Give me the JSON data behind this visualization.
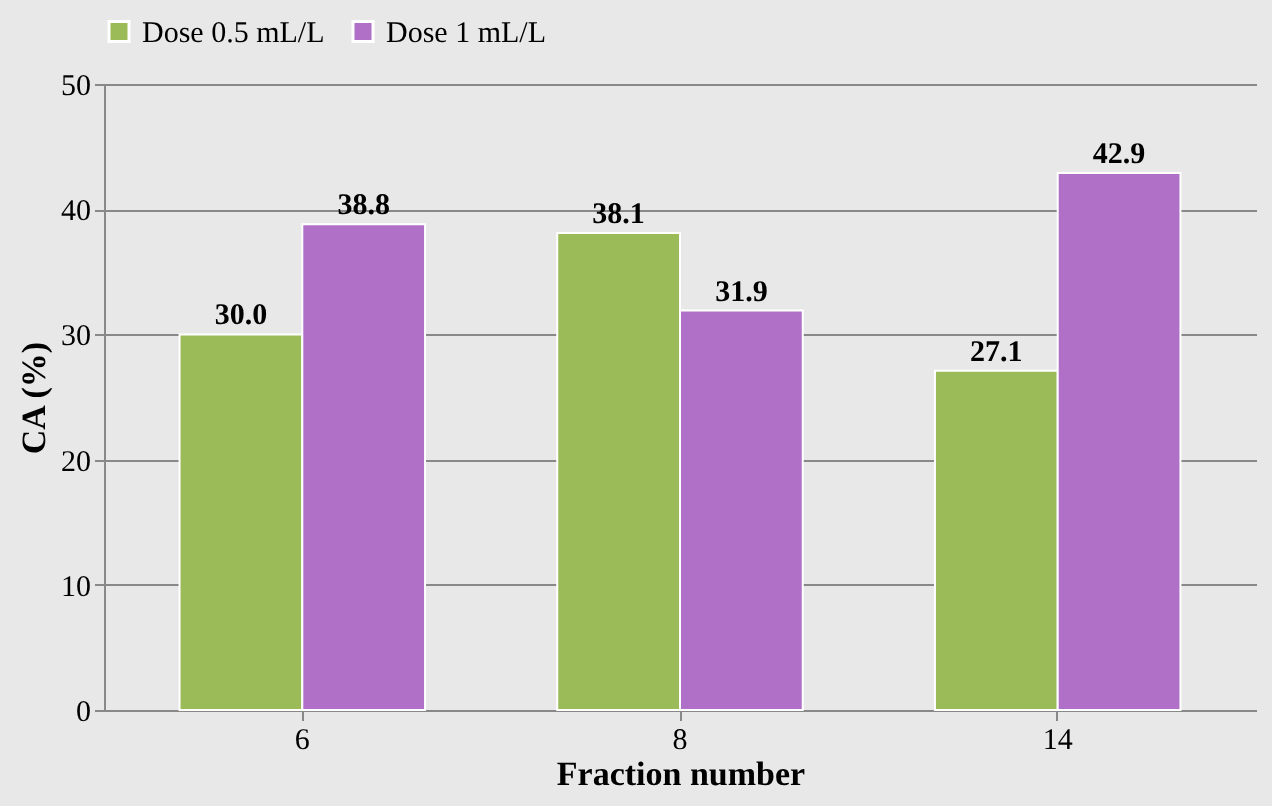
{
  "chart_data": {
    "type": "bar",
    "xlabel": "Fraction number",
    "ylabel": "CA (%)",
    "categories": [
      "6",
      "8",
      "14"
    ],
    "series": [
      {
        "name": "Dose 0.5 mL/L",
        "color": "#9bbb59",
        "values": [
          30.0,
          38.1,
          27.1
        ],
        "value_labels": [
          "30.0",
          "38.1",
          "27.1"
        ]
      },
      {
        "name": "Dose 1 mL/L",
        "color": "#b070c8",
        "values": [
          38.8,
          31.9,
          42.9
        ],
        "value_labels": [
          "38.8",
          "31.9",
          "42.9"
        ]
      }
    ],
    "ylim": [
      0,
      50
    ],
    "yticks": [
      0,
      10,
      20,
      30,
      40,
      50
    ],
    "grid": "y",
    "legend": "top"
  }
}
